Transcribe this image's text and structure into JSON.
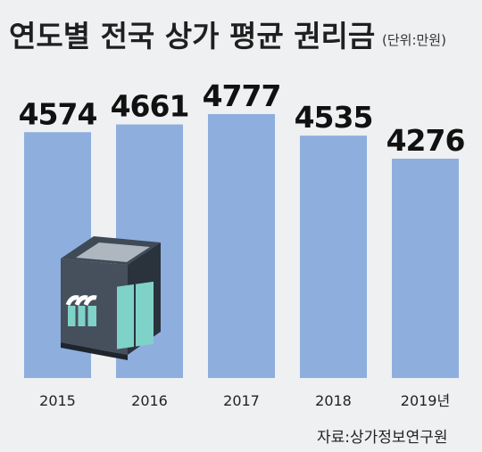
{
  "chart_data": {
    "type": "bar",
    "title": "연도별 전국 상가 평균 권리금",
    "unit": "(단위:만원)",
    "categories": [
      "2015",
      "2016",
      "2017",
      "2018",
      "2019년"
    ],
    "values": [
      4574,
      4661,
      4777,
      4535,
      4276
    ],
    "source": "자료:상가정보연구원",
    "colors": {
      "bar": "#8eaede",
      "background": "#eef0f1"
    },
    "illustration": "store-building-icon"
  }
}
